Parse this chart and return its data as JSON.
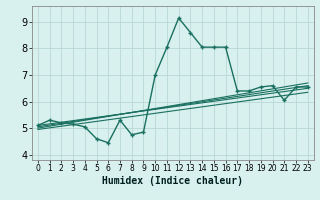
{
  "title": "",
  "xlabel": "Humidex (Indice chaleur)",
  "bg_color": "#d8f0ee",
  "grid_color": "#b8d8d4",
  "line_color": "#1a7060",
  "spine_color": "#888888",
  "xlim": [
    -0.5,
    23.5
  ],
  "ylim": [
    3.8,
    9.6
  ],
  "yticks": [
    4,
    5,
    6,
    7,
    8,
    9
  ],
  "xticks": [
    0,
    1,
    2,
    3,
    4,
    5,
    6,
    7,
    8,
    9,
    10,
    11,
    12,
    13,
    14,
    15,
    16,
    17,
    18,
    19,
    20,
    21,
    22,
    23
  ],
  "main_x": [
    0,
    1,
    2,
    3,
    4,
    5,
    6,
    7,
    8,
    9,
    10,
    11,
    12,
    13,
    14,
    15,
    16,
    17,
    18,
    19,
    20,
    21,
    22,
    23
  ],
  "main_y": [
    5.1,
    5.3,
    5.2,
    5.15,
    5.05,
    4.6,
    4.45,
    5.3,
    4.75,
    4.85,
    7.0,
    8.05,
    9.15,
    8.6,
    8.05,
    8.05,
    8.05,
    6.4,
    6.4,
    6.55,
    6.6,
    6.05,
    6.55,
    6.55
  ],
  "trend_lines": [
    [
      [
        0,
        23
      ],
      [
        5.05,
        6.6
      ]
    ],
    [
      [
        0,
        23
      ],
      [
        5.1,
        6.5
      ]
    ],
    [
      [
        0,
        23
      ],
      [
        5.0,
        6.7
      ]
    ],
    [
      [
        0,
        23
      ],
      [
        4.95,
        6.35
      ]
    ]
  ]
}
